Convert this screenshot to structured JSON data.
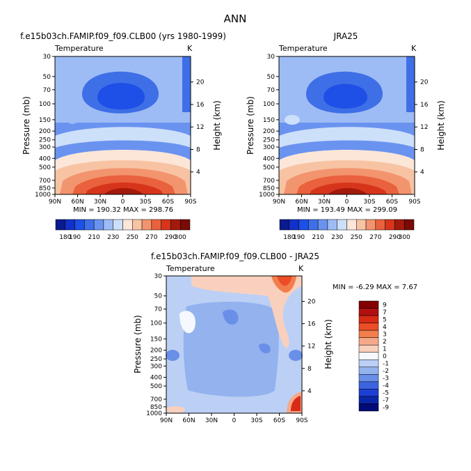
{
  "figure_title": "ANN",
  "chart_data": [
    {
      "type": "heatmap",
      "title": "f.e15b03ch.FAMIP.f09_f09.CLB00 (yrs 1980-1999)",
      "subtitle": "Temperature",
      "units": "K",
      "ylabel": "Pressure (mb)",
      "ylabel_right": "Height (km)",
      "x_ticks": [
        "90N",
        "60N",
        "30N",
        "0",
        "30S",
        "60S",
        "90S"
      ],
      "y_ticks": [
        "30",
        "50",
        "70",
        "100",
        "150",
        "200",
        "250",
        "300",
        "400",
        "500",
        "700",
        "850",
        "1000"
      ],
      "y2_ticks": [
        "20",
        "16",
        "12",
        "8",
        "4"
      ],
      "stats": "MIN = 190.32   MAX = 298.76",
      "min": 190.32,
      "max": 298.76,
      "contour_levels": [
        180,
        190,
        200,
        210,
        220,
        230,
        240,
        250,
        260,
        270,
        280,
        290,
        300
      ],
      "colorbar_labels": [
        "180",
        "190",
        "210",
        "230",
        "250",
        "270",
        "290",
        "300"
      ]
    },
    {
      "type": "heatmap",
      "title": "JRA25",
      "subtitle": "Temperature",
      "units": "K",
      "ylabel": "Pressure (mb)",
      "ylabel_right": "Height (km)",
      "x_ticks": [
        "90N",
        "60N",
        "30N",
        "0",
        "30S",
        "60S",
        "90S"
      ],
      "y_ticks": [
        "30",
        "50",
        "70",
        "100",
        "150",
        "200",
        "250",
        "300",
        "400",
        "500",
        "700",
        "850",
        "1000"
      ],
      "y2_ticks": [
        "20",
        "16",
        "12",
        "8",
        "4"
      ],
      "stats": "MIN = 193.49   MAX = 299.09",
      "min": 193.49,
      "max": 299.09,
      "contour_levels": [
        180,
        190,
        200,
        210,
        220,
        230,
        240,
        250,
        260,
        270,
        280,
        290,
        300
      ],
      "colorbar_labels": [
        "180",
        "190",
        "210",
        "230",
        "250",
        "270",
        "290",
        "300"
      ]
    },
    {
      "type": "heatmap",
      "title": "f.e15b03ch.FAMIP.f09_f09.CLB00 - JRA25",
      "subtitle": "Temperature",
      "units": "K",
      "ylabel": "Pressure (mb)",
      "ylabel_right": "Height (km)",
      "x_ticks": [
        "90N",
        "60N",
        "30N",
        "0",
        "30S",
        "60S",
        "90S"
      ],
      "y_ticks": [
        "30",
        "50",
        "70",
        "100",
        "150",
        "200",
        "250",
        "300",
        "400",
        "500",
        "700",
        "850",
        "1000"
      ],
      "y2_ticks": [
        "20",
        "16",
        "12",
        "8",
        "4"
      ],
      "stats": "MIN = -6.29   MAX =  7.67",
      "min": -6.29,
      "max": 7.67,
      "colorbar_labels": [
        "9",
        "7",
        "5",
        "4",
        "3",
        "2",
        "1",
        "0",
        "-1",
        "-2",
        "-3",
        "-4",
        "-5",
        "-7",
        "-9"
      ]
    }
  ],
  "colors": {
    "temp_scale": [
      "#0b1a8c",
      "#1330c8",
      "#1e4fe6",
      "#3f6fe6",
      "#6a93f0",
      "#9dbcf5",
      "#cde0fa",
      "#fbe6d8",
      "#f7c3a3",
      "#f2946e",
      "#e9613d",
      "#d6351b",
      "#a31a0d",
      "#7a0a06"
    ],
    "diff_scale": [
      "#850000",
      "#b01010",
      "#d82a15",
      "#ec4d26",
      "#f27e4e",
      "#f6a98a",
      "#f9d0bd",
      "#f5f8fc",
      "#bcd0f5",
      "#93b2ee",
      "#6a8fe8",
      "#3d64e0",
      "#1c3fd3",
      "#0a26a8",
      "#000a78"
    ]
  }
}
